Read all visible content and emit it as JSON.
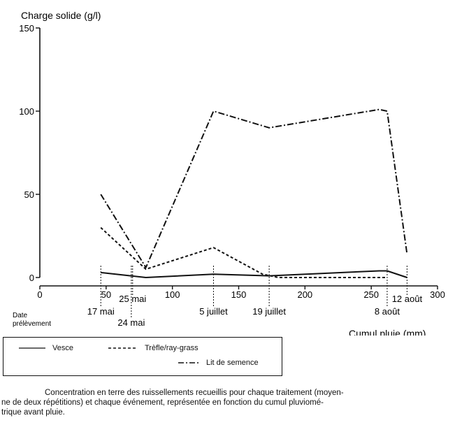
{
  "chart_data": {
    "type": "line",
    "ylabel": "Charge solide (g/l)",
    "xlabel": "Cumul pluie (mm)",
    "xlim": [
      0,
      300
    ],
    "ylim": [
      0,
      150
    ],
    "xticks": [
      {
        "value": 0,
        "label": "0"
      },
      {
        "value": 50,
        "label": "50"
      },
      {
        "value": 100,
        "label": "100"
      },
      {
        "value": 150,
        "label": "150"
      },
      {
        "value": 200,
        "label": "200"
      },
      {
        "value": 250,
        "label": "250"
      },
      {
        "value": 300,
        "label": "300"
      }
    ],
    "yticks": [
      {
        "value": 0,
        "label": "0"
      },
      {
        "value": 50,
        "label": "50"
      },
      {
        "value": 100,
        "label": "100"
      },
      {
        "value": 150,
        "label": "150"
      }
    ],
    "date_row_label": [
      "Date",
      "prélèvement"
    ],
    "sampling_dates": [
      {
        "x": 46,
        "label": "17 mai",
        "row": 1
      },
      {
        "x": 69,
        "label": "24 mai",
        "row": 2
      },
      {
        "x": 70,
        "label": "25 mai",
        "row": 0
      },
      {
        "x": 131,
        "label": "5 juillet",
        "row": 1
      },
      {
        "x": 173,
        "label": "19 juillet",
        "row": 1
      },
      {
        "x": 262,
        "label": "8 août",
        "row": 1
      },
      {
        "x": 277,
        "label": "12 août",
        "row": 0
      }
    ],
    "series": [
      {
        "name": "Vesce",
        "style": "solid",
        "x": [
          46,
          80,
          131,
          173,
          256,
          262,
          277
        ],
        "y": [
          3,
          0,
          2,
          1,
          4,
          4,
          0
        ]
      },
      {
        "name": "Trèfle/ray-grass",
        "style": "dashed",
        "x": [
          46,
          80,
          131,
          168,
          180,
          256,
          262
        ],
        "y": [
          30,
          5,
          18,
          2,
          0,
          0,
          0
        ]
      },
      {
        "name": "Lit de semence",
        "style": "dashdot",
        "x": [
          46,
          80,
          131,
          173,
          256,
          262,
          277
        ],
        "y": [
          50,
          6,
          100,
          90,
          101,
          100,
          14
        ]
      }
    ]
  },
  "caption": {
    "line1": "Concentration en terre des ruissellements recueillis pour chaque traitement (moyen-",
    "line2": "ne de deux répétitions) et chaque événement, représentée en fonction du cumul pluviomé-",
    "line3": "trique avant pluie."
  }
}
